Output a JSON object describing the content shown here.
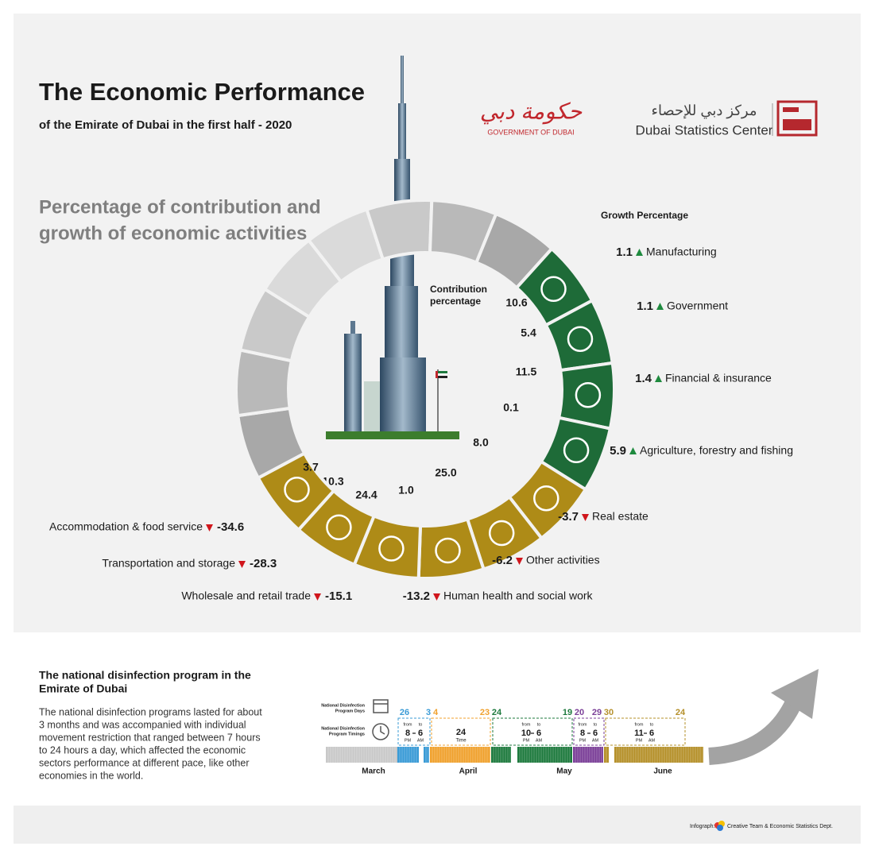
{
  "header": {
    "title": "The Economic Performance",
    "subtitle": "of the Emirate of Dubai  in the first half - 2020",
    "gov_logo_arabic": "حكومة دبي",
    "gov_logo_text": "GOVERNMENT OF DUBAI",
    "dsc_logo_arabic": "مركز دبي للإحصاء",
    "dsc_logo_text": "Dubai Statistics Center"
  },
  "section_title": [
    "Percentage of contribution and",
    "growth of economic activities"
  ],
  "growth_label": "Growth Percentage",
  "contribution_label": [
    "Contribution",
    "percentage"
  ],
  "sectors": [
    {
      "name": "Manufacturing",
      "growth": 1.1,
      "contribution": 10.6,
      "color": "#1e6b38"
    },
    {
      "name": "Government",
      "growth": 1.1,
      "contribution": 5.4,
      "color": "#1e6b38"
    },
    {
      "name": "Financial & insurance",
      "growth": 1.4,
      "contribution": 11.5,
      "color": "#1e6b38"
    },
    {
      "name": "Agriculture, forestry and fishing",
      "growth": 5.9,
      "contribution": 0.1,
      "color": "#1e6b38"
    },
    {
      "name": "Real estate",
      "growth": -3.7,
      "contribution": {
        "value": 8,
        "label": "8.0"
      },
      "color": "#ae8b17"
    },
    {
      "name": "Other activities",
      "growth": -6.2,
      "contribution": {
        "value": 25,
        "label": "25.0"
      },
      "color": "#ae8b17"
    },
    {
      "name": "Human health and social work",
      "growth": -13.2,
      "contribution": {
        "value": 1,
        "label": "1.0"
      },
      "color": "#ae8b17"
    },
    {
      "name": "Wholesale and retail trade",
      "growth": -15.1,
      "contribution": 24.4,
      "color": "#ae8b17"
    },
    {
      "name": "Transportation and storage",
      "growth": -28.3,
      "contribution": 10.3,
      "color": "#ae8b17"
    },
    {
      "name": "Accommodation & food service",
      "growth": -34.6,
      "contribution": 3.7,
      "color": "#ae8b17"
    }
  ],
  "program": {
    "title": [
      "The national disinfection program in the",
      "Emirate of Dubai"
    ],
    "text": [
      "The national disinfection programs lasted for about",
      "3 months and was accompanied with individual",
      "movement restriction that ranged between 7 hours",
      "to 24 hours a day, which affected the economic",
      "sectors performance at different pace, like other",
      "economies in the world."
    ],
    "days_label": [
      "National Disinfection",
      "Program Days"
    ],
    "timings_label": [
      "National Disinfection",
      "Program Timings"
    ],
    "from_word": "from",
    "to_word": "to",
    "periods": [
      {
        "start_day": 26,
        "end_day": 3,
        "color": "#3a9bd6",
        "from_time": 8,
        "from_period": "PM",
        "to_time": 6,
        "to_period": "AM"
      },
      {
        "start_day": 4,
        "end_day": 23,
        "color": "#f0a12e",
        "hours": 24,
        "hours_label": "Time"
      },
      {
        "start_day": 24,
        "end_day": 19,
        "color": "#1e7a3e",
        "from_time": 10,
        "from_period": "PM",
        "to_time": 6,
        "to_period": "AM"
      },
      {
        "start_day": 20,
        "end_day": 29,
        "color": "#7b3f98",
        "from_time": 8,
        "from_period": "PM",
        "to_time": 6,
        "to_period": "AM"
      },
      {
        "start_day": 30,
        "end_day": 24,
        "color": "#b5902a",
        "from_time": 11,
        "from_period": "PM",
        "to_time": 6,
        "to_period": "AM"
      }
    ],
    "months": [
      "March",
      "April",
      "May",
      "June"
    ]
  },
  "footer": {
    "label": "Infograph:",
    "credit": "Creative Team & Economic Statistics Dept."
  }
}
